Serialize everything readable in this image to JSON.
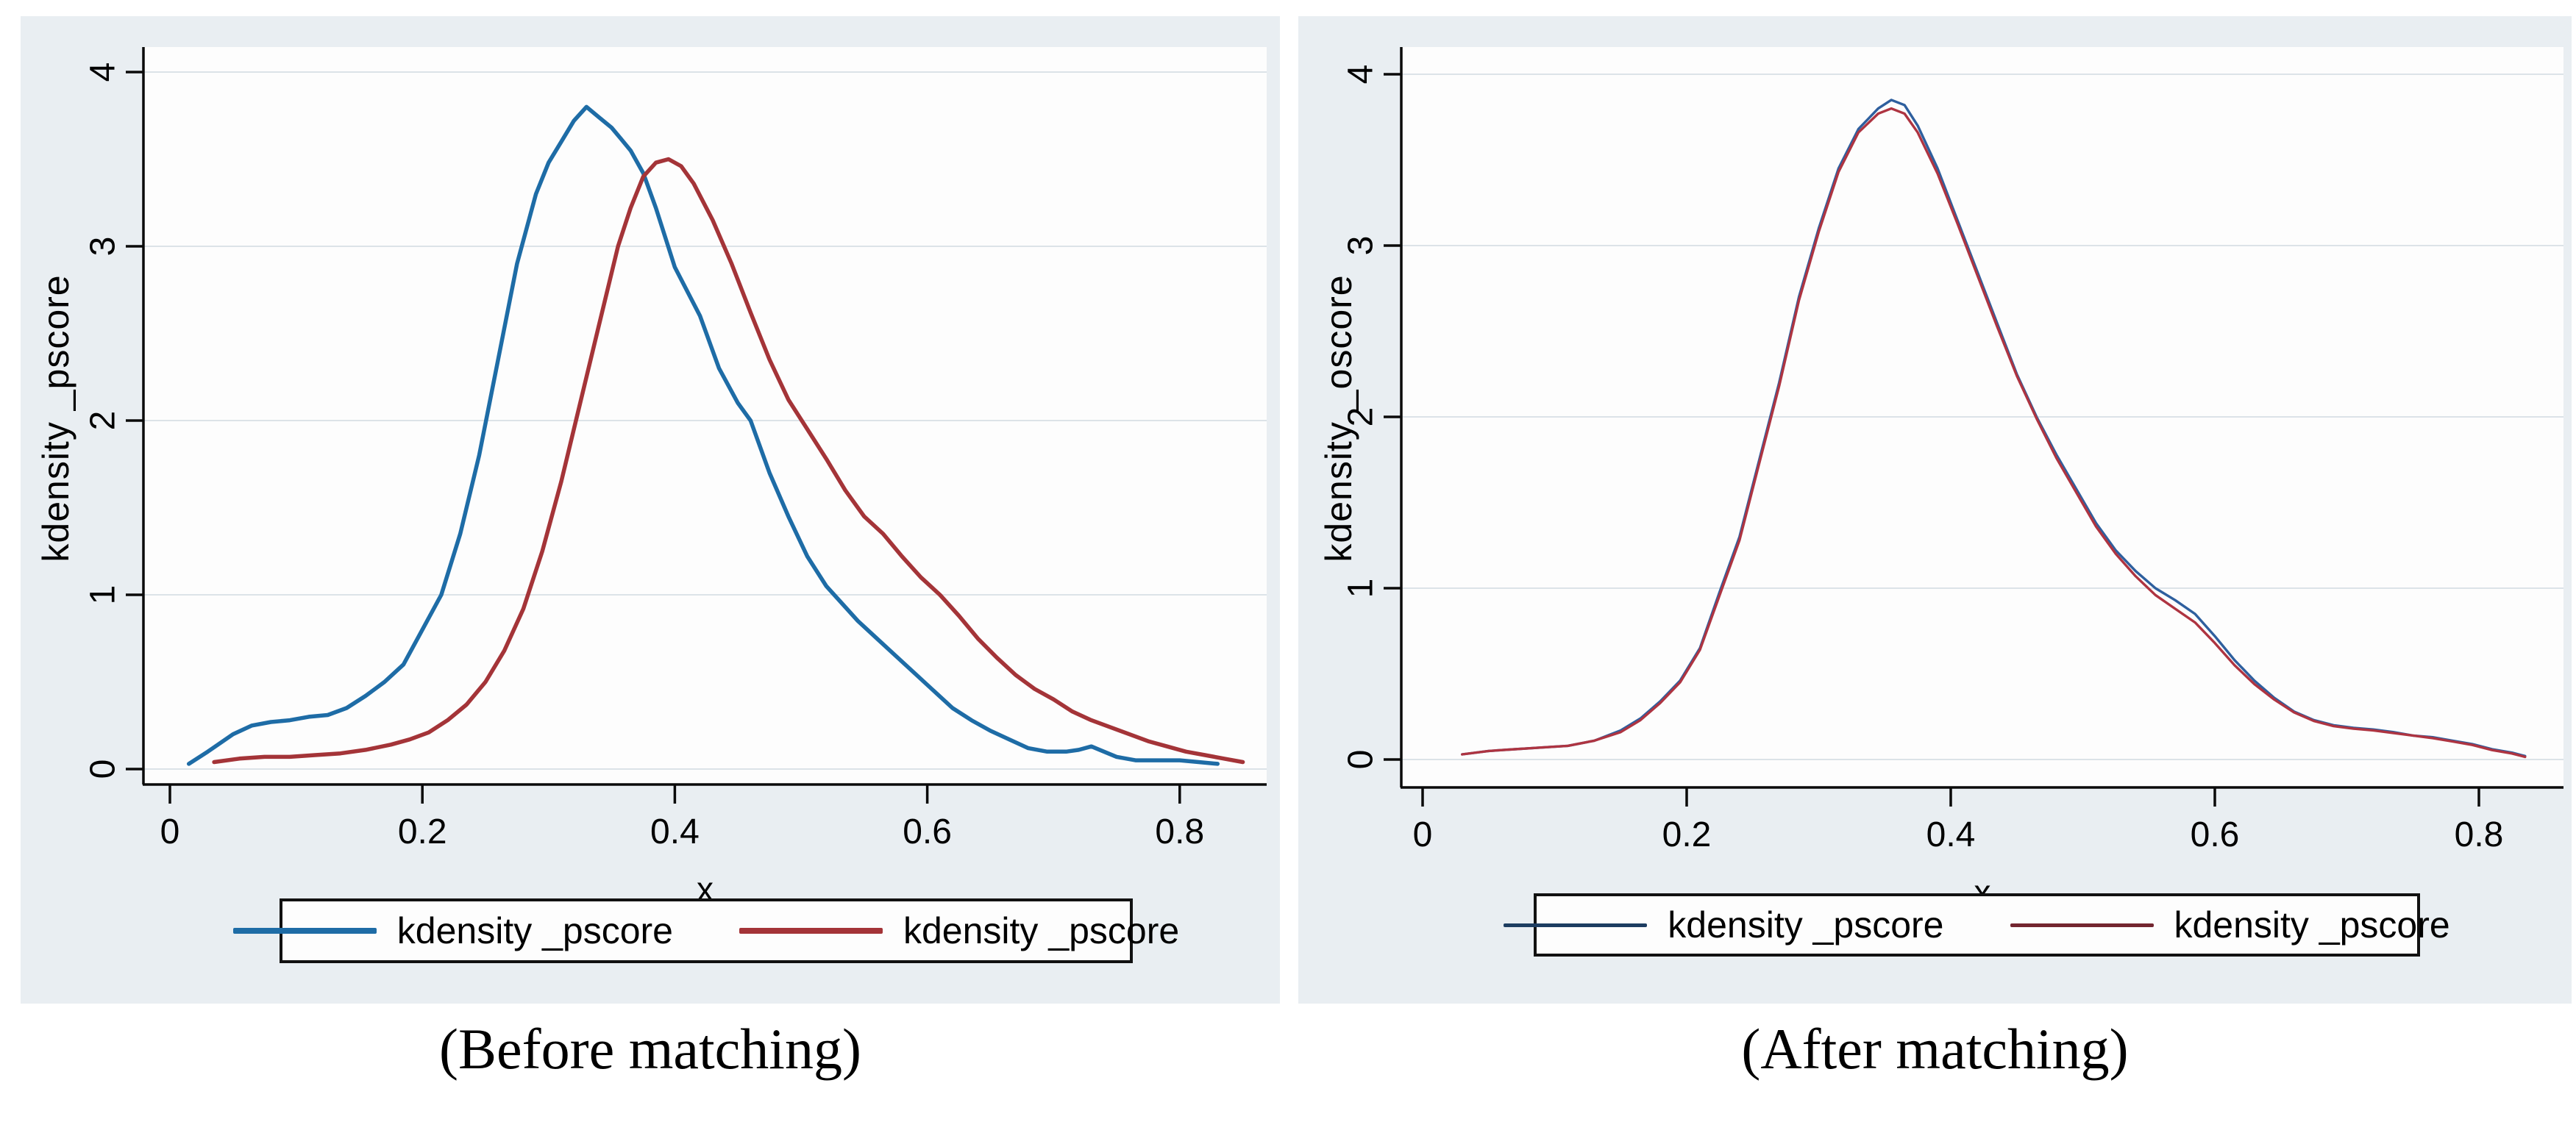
{
  "style": {
    "page_bg": "#ffffff",
    "panel_bg": "#e9eef2",
    "plot_bg": "#fdfdfd",
    "grid_color": "#dce3e8",
    "axis_color": "#0a0a0a",
    "text_color": "#000000"
  },
  "captions": [
    "(Before matching)",
    "(After matching)"
  ],
  "chart_data": [
    {
      "type": "line",
      "title": "(Before matching)",
      "xlabel": "x",
      "ylabel": "kdensity _pscore",
      "xlim": [
        0,
        0.88
      ],
      "ylim": [
        0,
        4.2
      ],
      "grid": true,
      "legend_position": "bottom",
      "x_ticks": [
        0,
        0.2,
        0.4,
        0.6,
        0.8
      ],
      "y_ticks": [
        0,
        1,
        2,
        3,
        4
      ],
      "x_tick_labels": [
        "0",
        "0.2",
        "0.4",
        "0.6",
        "0.8"
      ],
      "y_tick_labels": [
        "0",
        "1",
        "2",
        "3",
        "4"
      ],
      "series": [
        {
          "name": "kdensity _pscore",
          "color": "#1e6ca6",
          "legend_color": "#1e6ca6",
          "x": [
            0.015,
            0.03,
            0.05,
            0.065,
            0.08,
            0.095,
            0.11,
            0.125,
            0.14,
            0.155,
            0.17,
            0.185,
            0.2,
            0.215,
            0.23,
            0.245,
            0.26,
            0.275,
            0.29,
            0.3,
            0.31,
            0.32,
            0.33,
            0.34,
            0.35,
            0.357,
            0.365,
            0.375,
            0.385,
            0.4,
            0.42,
            0.435,
            0.45,
            0.46,
            0.475,
            0.49,
            0.505,
            0.52,
            0.53,
            0.545,
            0.56,
            0.575,
            0.59,
            0.605,
            0.62,
            0.635,
            0.65,
            0.665,
            0.68,
            0.695,
            0.71,
            0.72,
            0.73,
            0.74,
            0.75,
            0.765,
            0.78,
            0.8,
            0.815,
            0.83
          ],
          "y": [
            0.03,
            0.1,
            0.2,
            0.25,
            0.27,
            0.28,
            0.3,
            0.31,
            0.35,
            0.42,
            0.5,
            0.6,
            0.8,
            1.0,
            1.35,
            1.8,
            2.35,
            2.9,
            3.3,
            3.48,
            3.6,
            3.72,
            3.8,
            3.74,
            3.68,
            3.62,
            3.55,
            3.42,
            3.22,
            2.88,
            2.6,
            2.3,
            2.1,
            2.0,
            1.7,
            1.45,
            1.22,
            1.05,
            0.97,
            0.85,
            0.75,
            0.65,
            0.55,
            0.45,
            0.35,
            0.28,
            0.22,
            0.17,
            0.12,
            0.1,
            0.1,
            0.11,
            0.13,
            0.1,
            0.07,
            0.05,
            0.05,
            0.05,
            0.04,
            0.03
          ]
        },
        {
          "name": "kdensity _pscore",
          "color": "#a43438",
          "legend_color": "#a43438",
          "x": [
            0.035,
            0.055,
            0.075,
            0.095,
            0.115,
            0.135,
            0.155,
            0.175,
            0.19,
            0.205,
            0.22,
            0.235,
            0.25,
            0.265,
            0.28,
            0.295,
            0.31,
            0.325,
            0.34,
            0.355,
            0.365,
            0.375,
            0.385,
            0.395,
            0.405,
            0.415,
            0.43,
            0.445,
            0.46,
            0.475,
            0.49,
            0.505,
            0.52,
            0.535,
            0.55,
            0.565,
            0.58,
            0.595,
            0.61,
            0.625,
            0.64,
            0.655,
            0.67,
            0.685,
            0.7,
            0.715,
            0.73,
            0.745,
            0.76,
            0.775,
            0.79,
            0.805,
            0.82,
            0.835,
            0.85
          ],
          "y": [
            0.04,
            0.06,
            0.07,
            0.07,
            0.08,
            0.09,
            0.11,
            0.14,
            0.17,
            0.21,
            0.28,
            0.37,
            0.5,
            0.68,
            0.92,
            1.25,
            1.65,
            2.1,
            2.55,
            3.0,
            3.22,
            3.4,
            3.48,
            3.5,
            3.46,
            3.36,
            3.15,
            2.9,
            2.62,
            2.35,
            2.12,
            1.95,
            1.78,
            1.6,
            1.45,
            1.35,
            1.22,
            1.1,
            1.0,
            0.88,
            0.75,
            0.64,
            0.54,
            0.46,
            0.4,
            0.33,
            0.28,
            0.24,
            0.2,
            0.16,
            0.13,
            0.1,
            0.08,
            0.06,
            0.04
          ]
        }
      ]
    },
    {
      "type": "line",
      "title": "(After matching)",
      "xlabel": "x",
      "ylabel": "kdensity _oscore",
      "xlim": [
        0,
        0.86
      ],
      "ylim": [
        0,
        4.2
      ],
      "grid": true,
      "legend_position": "bottom",
      "x_ticks": [
        0,
        0.2,
        0.4,
        0.6,
        0.8
      ],
      "y_ticks": [
        0,
        1,
        2,
        3,
        4
      ],
      "x_tick_labels": [
        "0",
        "0.2",
        "0.4",
        "0.6",
        "0.8"
      ],
      "y_tick_labels": [
        "0",
        "1",
        "2",
        "3",
        "4"
      ],
      "series": [
        {
          "name": "kdensity _pscore",
          "color": "#2e5f9e",
          "legend_color": "#1d3d61",
          "x": [
            0.03,
            0.05,
            0.07,
            0.09,
            0.11,
            0.13,
            0.15,
            0.165,
            0.18,
            0.195,
            0.21,
            0.225,
            0.24,
            0.255,
            0.27,
            0.285,
            0.3,
            0.315,
            0.33,
            0.345,
            0.355,
            0.365,
            0.375,
            0.39,
            0.405,
            0.42,
            0.435,
            0.45,
            0.465,
            0.48,
            0.495,
            0.51,
            0.525,
            0.54,
            0.555,
            0.57,
            0.585,
            0.6,
            0.615,
            0.63,
            0.645,
            0.66,
            0.675,
            0.69,
            0.705,
            0.72,
            0.735,
            0.75,
            0.765,
            0.78,
            0.795,
            0.81,
            0.825,
            0.835
          ],
          "y": [
            0.03,
            0.05,
            0.06,
            0.07,
            0.08,
            0.11,
            0.17,
            0.24,
            0.34,
            0.46,
            0.65,
            0.98,
            1.3,
            1.75,
            2.2,
            2.7,
            3.1,
            3.45,
            3.68,
            3.8,
            3.85,
            3.82,
            3.7,
            3.45,
            3.15,
            2.85,
            2.55,
            2.25,
            2.0,
            1.78,
            1.58,
            1.38,
            1.22,
            1.1,
            1.0,
            0.93,
            0.85,
            0.72,
            0.58,
            0.46,
            0.36,
            0.28,
            0.23,
            0.2,
            0.185,
            0.175,
            0.16,
            0.14,
            0.13,
            0.11,
            0.09,
            0.06,
            0.04,
            0.02
          ]
        },
        {
          "name": "kdensity _pscore",
          "color": "#ae3441",
          "legend_color": "#732630",
          "x": [
            0.03,
            0.05,
            0.07,
            0.09,
            0.11,
            0.13,
            0.15,
            0.165,
            0.18,
            0.195,
            0.21,
            0.225,
            0.24,
            0.255,
            0.27,
            0.285,
            0.3,
            0.315,
            0.33,
            0.345,
            0.355,
            0.365,
            0.375,
            0.39,
            0.405,
            0.42,
            0.435,
            0.45,
            0.465,
            0.48,
            0.495,
            0.51,
            0.525,
            0.54,
            0.555,
            0.57,
            0.585,
            0.6,
            0.615,
            0.63,
            0.645,
            0.66,
            0.675,
            0.69,
            0.705,
            0.72,
            0.735,
            0.75,
            0.765,
            0.78,
            0.795,
            0.81,
            0.825,
            0.835
          ],
          "y": [
            0.03,
            0.05,
            0.06,
            0.07,
            0.08,
            0.11,
            0.16,
            0.23,
            0.33,
            0.45,
            0.64,
            0.96,
            1.28,
            1.73,
            2.18,
            2.68,
            3.08,
            3.43,
            3.66,
            3.77,
            3.8,
            3.77,
            3.66,
            3.42,
            3.13,
            2.83,
            2.53,
            2.24,
            1.99,
            1.76,
            1.56,
            1.36,
            1.2,
            1.07,
            0.96,
            0.88,
            0.8,
            0.68,
            0.55,
            0.44,
            0.35,
            0.275,
            0.225,
            0.195,
            0.18,
            0.17,
            0.155,
            0.14,
            0.125,
            0.105,
            0.085,
            0.055,
            0.035,
            0.015
          ]
        }
      ]
    }
  ]
}
